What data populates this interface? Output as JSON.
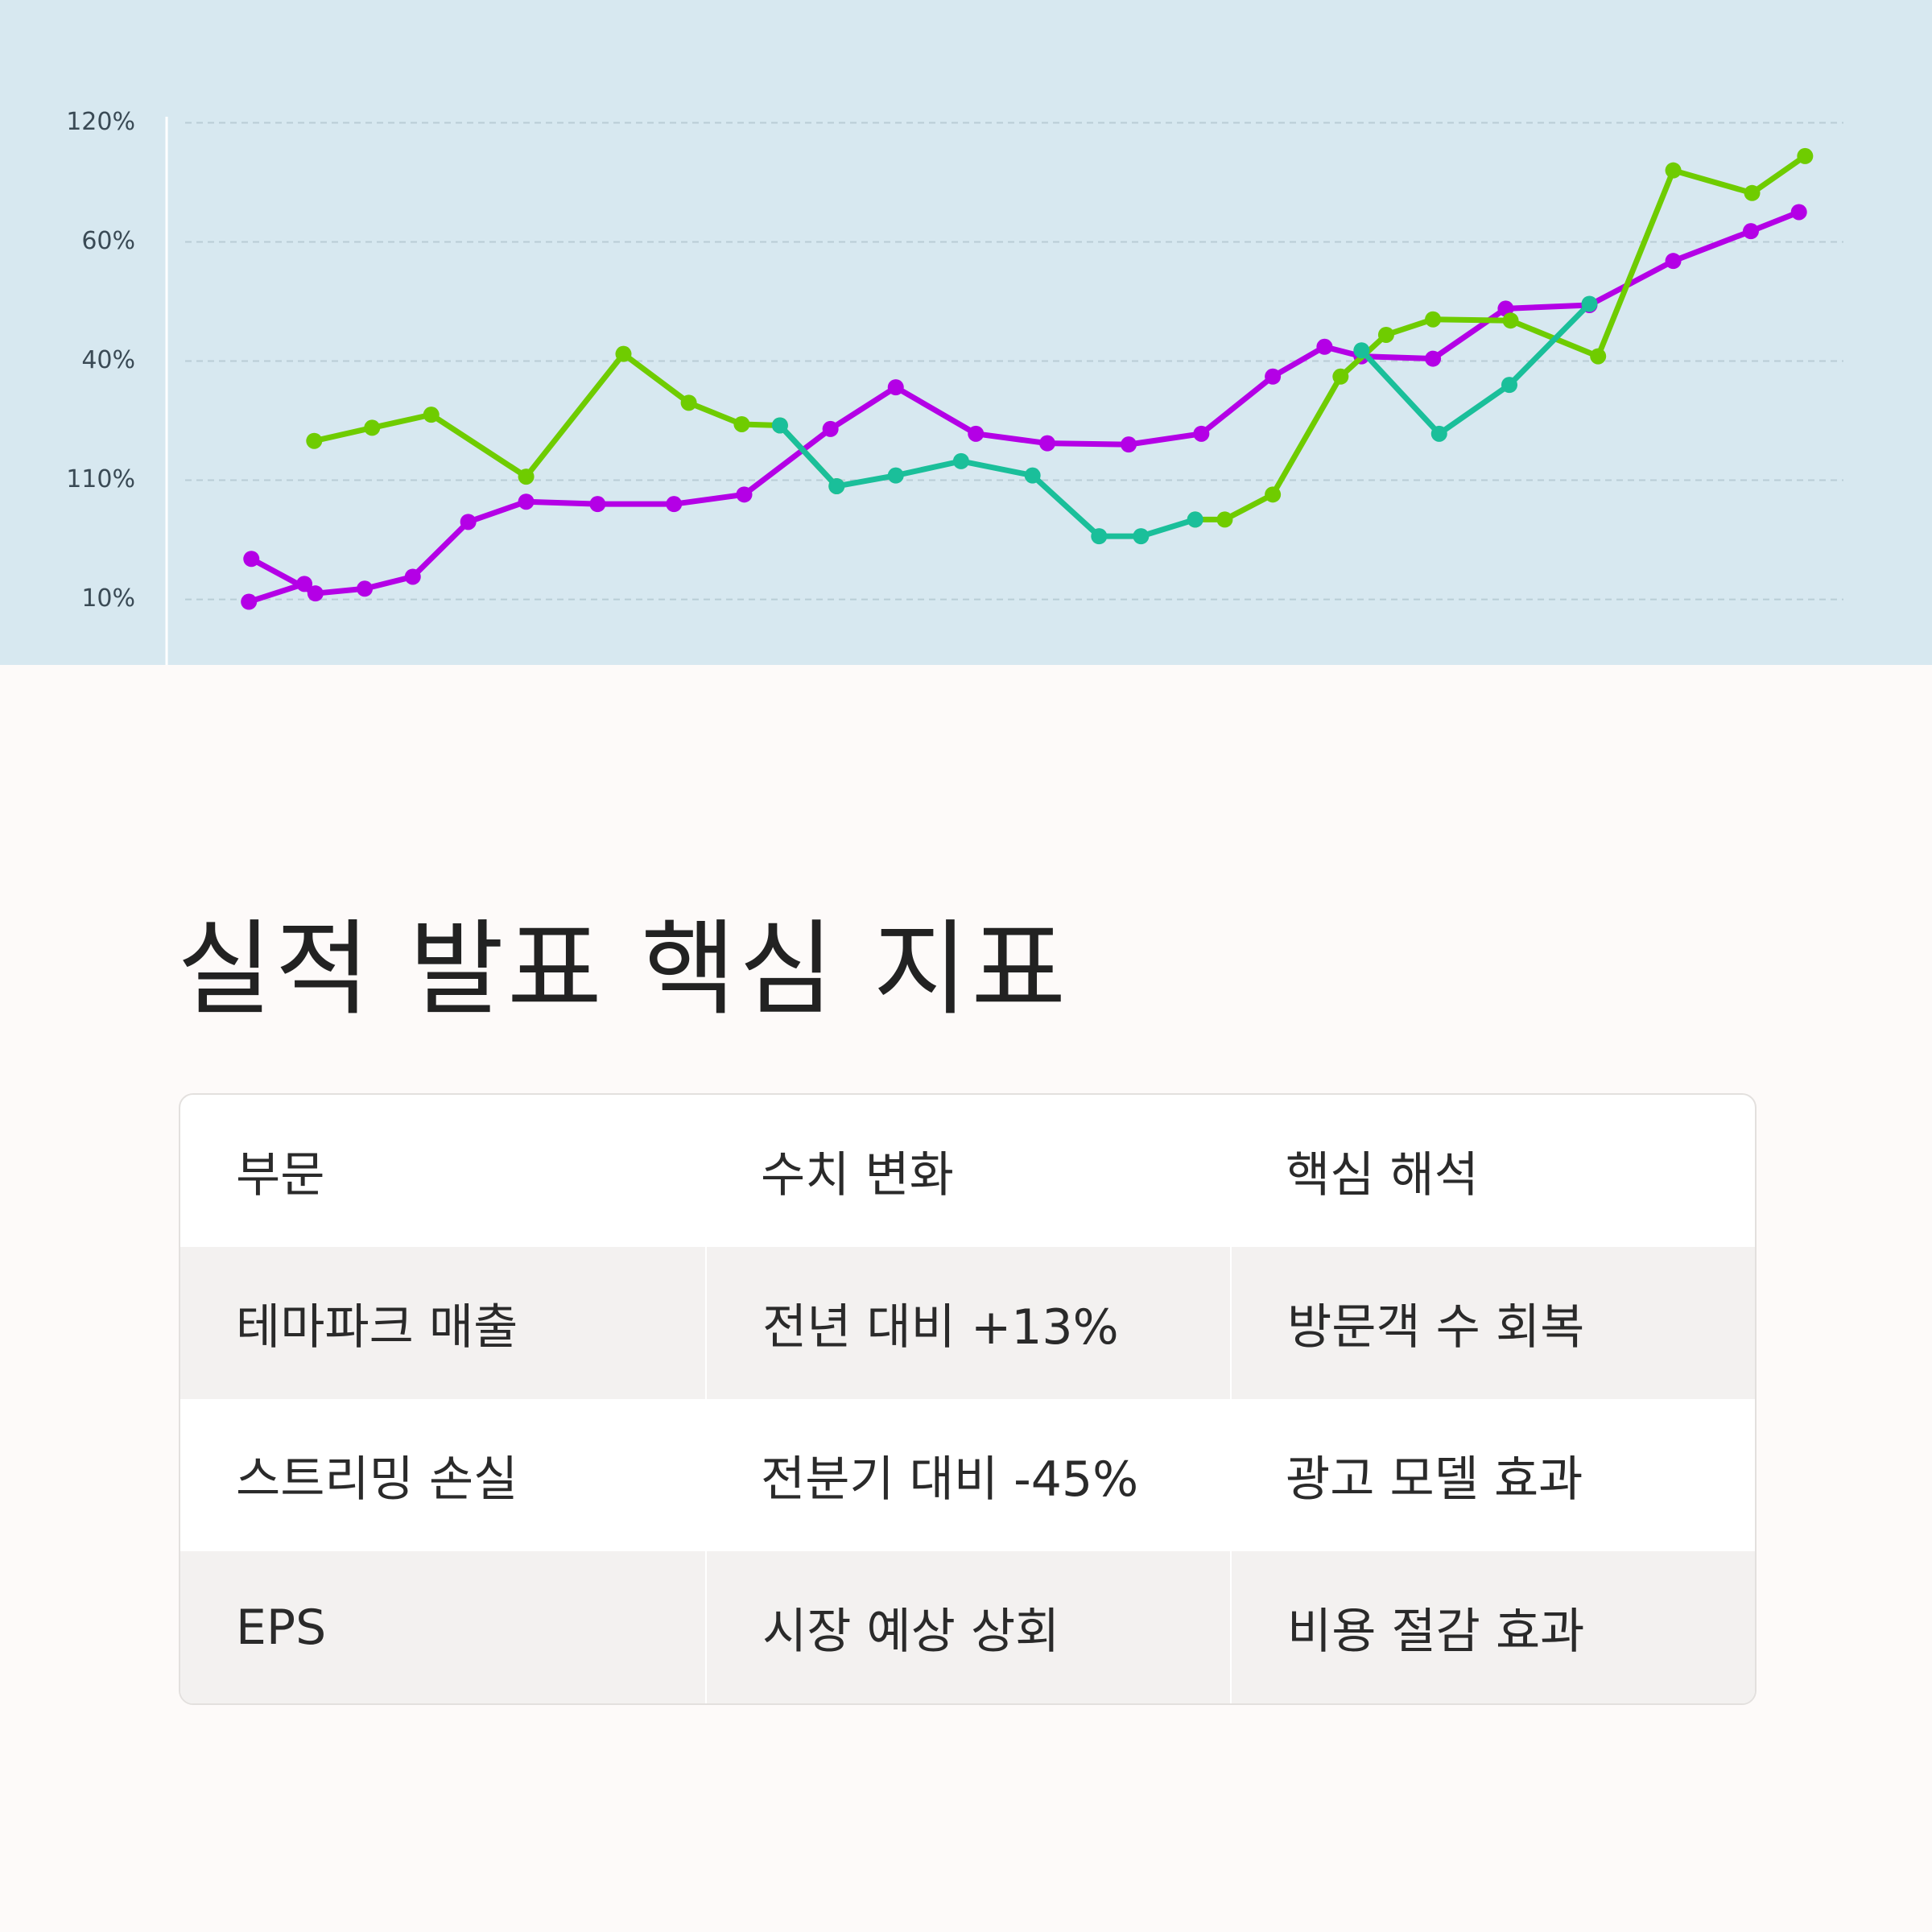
{
  "chart_data": {
    "type": "line",
    "ylim": [
      -0.55,
      5.03
    ],
    "xlim": [
      0,
      1568
    ],
    "yticks": [
      {
        "value": 4,
        "label": "120%"
      },
      {
        "value": 3,
        "label": "60%"
      },
      {
        "value": 2,
        "label": "40%"
      },
      {
        "value": 1,
        "label": "110%"
      },
      {
        "value": 0,
        "label": "10%"
      }
    ],
    "grid": true,
    "series": [
      {
        "color": "#b400e6",
        "x": [
          202,
          247
        ],
        "values": [
          -0.02,
          0.13
        ]
      },
      {
        "color": "#b400e6",
        "x": [
          204,
          256,
          296,
          335,
          380,
          427,
          485,
          547,
          604,
          674,
          727,
          792,
          850,
          916,
          975,
          1033,
          1075,
          1105,
          1163,
          1222,
          1290,
          1358,
          1421,
          1460
        ],
        "values": [
          0.34,
          0.05,
          0.09,
          0.19,
          0.65,
          0.82,
          0.8,
          0.8,
          0.88,
          1.43,
          1.78,
          1.39,
          1.31,
          1.3,
          1.39,
          1.87,
          2.12,
          2.04,
          2.02,
          2.44,
          2.47,
          2.84,
          3.09,
          3.25
        ]
      },
      {
        "color": "#6fcc00",
        "x": [
          255,
          302,
          350,
          427,
          506,
          559,
          602,
          633,
          679
        ],
        "values": [
          1.33,
          1.44,
          1.55,
          1.03,
          2.06,
          1.65,
          1.47,
          1.46,
          0.95
        ]
      },
      {
        "color": "#6fcc00",
        "x": [
          970,
          994,
          1033,
          1088,
          1125,
          1163,
          1226,
          1297,
          1358,
          1422,
          1465
        ],
        "values": [
          0.67,
          0.67,
          0.88,
          1.87,
          2.22,
          2.35,
          2.34,
          2.04,
          3.6,
          3.41,
          3.72
        ]
      },
      {
        "color": "#1abf9a",
        "x": [
          633,
          679,
          727,
          780,
          838,
          892,
          926,
          970
        ],
        "values": [
          1.46,
          0.95,
          1.04,
          1.16,
          1.04,
          0.53,
          0.53,
          0.67
        ]
      },
      {
        "color": "#1abf9a",
        "x": [
          1105,
          1168,
          1225,
          1290
        ],
        "values": [
          2.09,
          1.39,
          1.8,
          2.48
        ]
      }
    ]
  },
  "title": "실적 발표 핵심 지표",
  "table": {
    "header": [
      "부문",
      "수치 변화",
      "핵심 해석"
    ],
    "rows": [
      [
        "테마파크 매출",
        "전년 대비 +13%",
        "방문객 수 회복"
      ],
      [
        "스트리밍 손실",
        "전분기 대비 -45%",
        "광고 모델 효과"
      ],
      [
        "EPS",
        "시장 예상 상회",
        "비용 절감 효과"
      ]
    ]
  }
}
